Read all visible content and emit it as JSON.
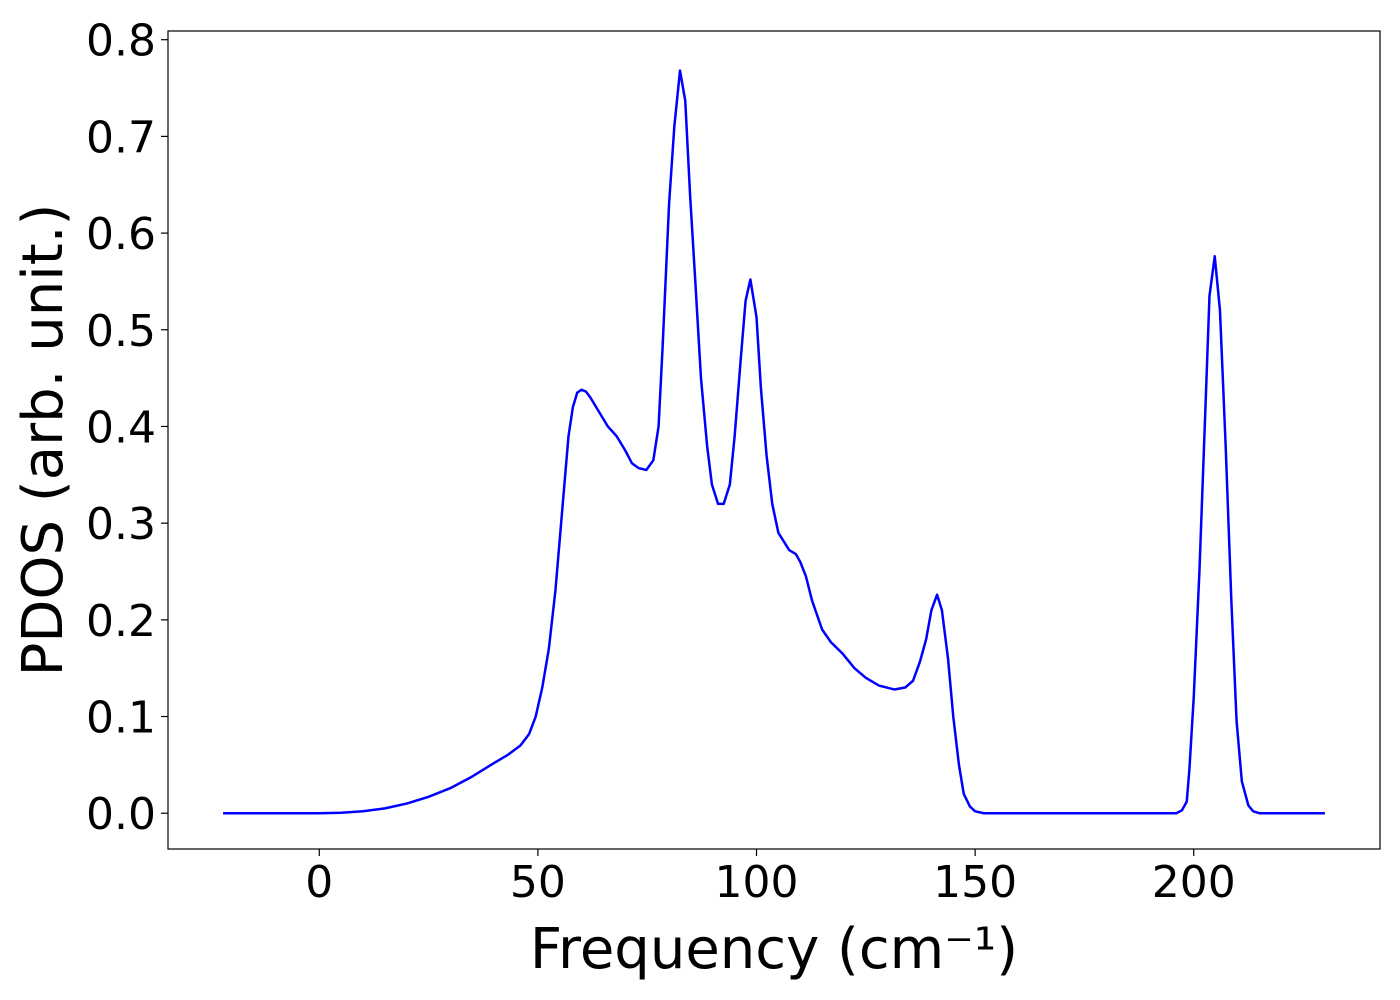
{
  "chart_data": {
    "type": "line",
    "xlabel": "Frequency (cm⁻¹)",
    "ylabel": "PDOS (arb. unit.)",
    "xlim": [
      -34.6,
      242.6
    ],
    "ylim": [
      -0.037,
      0.809
    ],
    "xticks": [
      0,
      50,
      100,
      150,
      200
    ],
    "yticks": [
      {
        "value": 0,
        "label": "0.0"
      },
      0.1,
      0.2,
      0.3,
      0.4,
      0.5,
      0.6,
      0.7,
      0.8
    ],
    "grid": false,
    "series": [
      {
        "color": "#0000ff",
        "x": [
          -22,
          -15,
          -10,
          -5,
          0,
          5,
          10,
          15,
          20,
          25,
          30,
          35,
          40,
          43,
          46,
          48,
          49.5,
          51,
          52.5,
          54,
          55.5,
          57,
          58,
          59,
          60,
          61,
          62,
          64,
          66,
          68,
          70,
          71.5,
          73,
          74.8,
          76.4,
          77.6,
          78.5,
          80,
          81.2,
          82.5,
          83.7,
          84.8,
          86,
          87.3,
          88.7,
          89.8,
          91.2,
          92.5,
          93.9,
          95,
          96.4,
          97.5,
          98.6,
          100,
          101,
          102.3,
          103.6,
          105,
          107.5,
          109,
          110,
          111.3,
          112.7,
          115,
          117,
          119.7,
          122.4,
          125,
          128,
          131.5,
          134,
          135.8,
          137.4,
          138.8,
          140,
          141.3,
          142.4,
          143.8,
          145,
          146.3,
          147.4,
          148.8,
          150,
          152,
          160,
          170,
          180,
          190,
          196,
          197.3,
          198.4,
          199,
          200,
          201.3,
          202.6,
          203.6,
          204.8,
          206,
          207.3,
          208.6,
          209.8,
          211,
          212.5,
          213.6,
          215,
          220,
          230
        ],
        "values": [
          0,
          0,
          0,
          0,
          0,
          0.0005,
          0.002,
          0.005,
          0.01,
          0.017,
          0.026,
          0.038,
          0.052,
          0.06,
          0.07,
          0.082,
          0.1,
          0.13,
          0.17,
          0.23,
          0.31,
          0.39,
          0.42,
          0.435,
          0.438,
          0.436,
          0.43,
          0.415,
          0.4,
          0.39,
          0.375,
          0.362,
          0.357,
          0.355,
          0.365,
          0.4,
          0.48,
          0.63,
          0.71,
          0.768,
          0.737,
          0.64,
          0.55,
          0.45,
          0.38,
          0.34,
          0.32,
          0.32,
          0.34,
          0.39,
          0.47,
          0.53,
          0.552,
          0.513,
          0.44,
          0.37,
          0.32,
          0.29,
          0.272,
          0.268,
          0.26,
          0.245,
          0.22,
          0.19,
          0.177,
          0.165,
          0.15,
          0.14,
          0.132,
          0.128,
          0.13,
          0.137,
          0.157,
          0.18,
          0.21,
          0.226,
          0.21,
          0.16,
          0.1,
          0.05,
          0.02,
          0.007,
          0.002,
          0,
          0,
          0,
          0,
          0,
          0,
          0.003,
          0.012,
          0.045,
          0.12,
          0.25,
          0.41,
          0.535,
          0.576,
          0.52,
          0.38,
          0.22,
          0.095,
          0.033,
          0.008,
          0.002,
          0,
          0,
          0
        ]
      }
    ]
  }
}
